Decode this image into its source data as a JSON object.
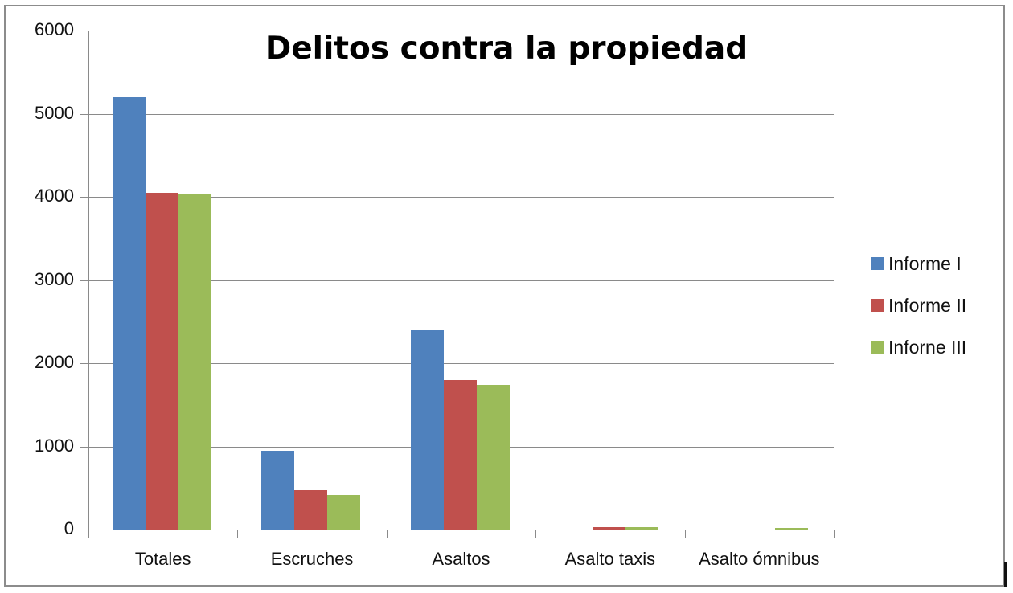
{
  "chart_data": {
    "type": "bar",
    "title": "Delitos contra la propiedad",
    "xlabel": "",
    "ylabel": "",
    "ylim": [
      0,
      6000
    ],
    "yticks": [
      0,
      1000,
      2000,
      3000,
      4000,
      5000,
      6000
    ],
    "grid": true,
    "legend_position": "right",
    "categories": [
      "Totales",
      "Escruches",
      "Asaltos",
      "Asalto taxis",
      "Asalto ómnibus"
    ],
    "series": [
      {
        "name": "Informe I",
        "color": "#4f81bd",
        "values": [
          5200,
          950,
          2400,
          0,
          0
        ]
      },
      {
        "name": "Informe II",
        "color": "#c0504d",
        "values": [
          4050,
          470,
          1800,
          30,
          0
        ]
      },
      {
        "name": "Inforne III",
        "color": "#9bbb59",
        "values": [
          4040,
          420,
          1740,
          30,
          15
        ]
      }
    ]
  },
  "labels": {
    "title": "Delitos contra la propiedad",
    "yticks": [
      "6000",
      "5000",
      "4000",
      "3000",
      "2000",
      "1000",
      "0"
    ],
    "categories": [
      "Totales",
      "Escruches",
      "Asaltos",
      "Asalto taxis",
      "Asalto ómnibus"
    ],
    "legend": [
      "Informe I",
      "Informe II",
      "Inforne III"
    ]
  }
}
